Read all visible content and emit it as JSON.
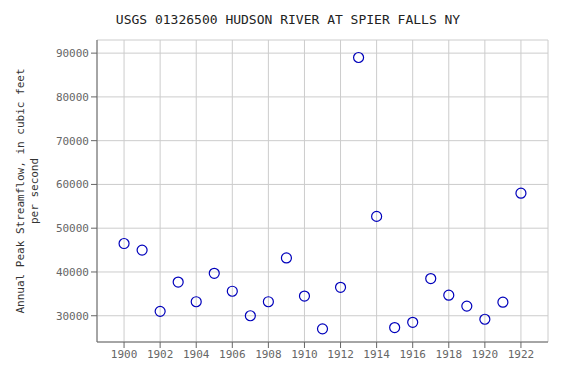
{
  "chart_data": {
    "type": "scatter",
    "title": "USGS 01326500 HUDSON RIVER AT SPIER FALLS NY",
    "y_label": "Annual Peak Streamflow, in cubic feet\nper second",
    "x": [
      1900,
      1901,
      1902,
      1903,
      1904,
      1905,
      1906,
      1907,
      1908,
      1909,
      1910,
      1911,
      1912,
      1913,
      1914,
      1915,
      1916,
      1917,
      1918,
      1919,
      1920,
      1921,
      1922
    ],
    "values": [
      46500,
      45000,
      31000,
      37700,
      33200,
      39700,
      35600,
      30000,
      33200,
      43200,
      34500,
      27000,
      36500,
      89000,
      52700,
      27300,
      28500,
      38500,
      34700,
      32200,
      29200,
      33100,
      58000
    ],
    "xlim": [
      1898.5,
      1923.5
    ],
    "ylim": [
      24000,
      93000
    ],
    "xticks": [
      1900,
      1902,
      1904,
      1906,
      1908,
      1910,
      1912,
      1914,
      1916,
      1918,
      1920,
      1922
    ],
    "yticks": [
      30000,
      40000,
      50000,
      60000,
      70000,
      80000,
      90000
    ],
    "color": "#0000bb",
    "marker": "circle",
    "grid": true
  }
}
